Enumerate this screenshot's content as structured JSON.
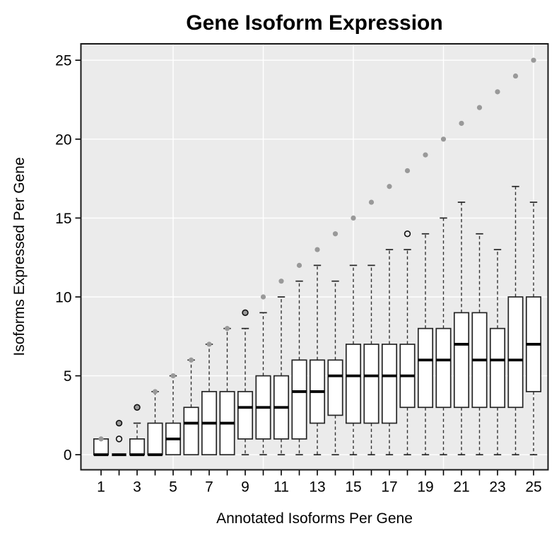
{
  "chart_data": {
    "type": "boxplot",
    "title": "Gene Isoform Expression",
    "xlabel": "Annotated Isoforms Per Gene",
    "ylabel": "Isoforms Expressed Per Gene",
    "xlim": [
      1,
      25
    ],
    "ylim": [
      0,
      25
    ],
    "y_ticks": [
      0,
      5,
      10,
      15,
      20,
      25
    ],
    "x_ticks": [
      1,
      2,
      3,
      4,
      5,
      6,
      7,
      8,
      9,
      10,
      11,
      12,
      13,
      14,
      15,
      16,
      17,
      18,
      19,
      20,
      21,
      22,
      23,
      24,
      25
    ],
    "x_tick_labels_shown": [
      1,
      3,
      5,
      7,
      9,
      11,
      13,
      15,
      17,
      19,
      21,
      23,
      25
    ],
    "x_gridlines": [
      5,
      10,
      15,
      20,
      25
    ],
    "grid": "white horizontal lines at y ticks and vertical lines at x=5,10,15,20,25 on gray panel",
    "legend": "none",
    "boxes": [
      {
        "x": 1,
        "q1": 0,
        "median": 0,
        "q3": 1,
        "whisker_low": 0,
        "whisker_high": 1,
        "outliers": []
      },
      {
        "x": 2,
        "q1": 0,
        "median": 0,
        "q3": 0,
        "whisker_low": 0,
        "whisker_high": 0,
        "outliers": [
          1,
          2
        ]
      },
      {
        "x": 3,
        "q1": 0,
        "median": 0,
        "q3": 1,
        "whisker_low": 0,
        "whisker_high": 2,
        "outliers": [
          3
        ]
      },
      {
        "x": 4,
        "q1": 0,
        "median": 0,
        "q3": 2,
        "whisker_low": 0,
        "whisker_high": 4,
        "outliers": []
      },
      {
        "x": 5,
        "q1": 0,
        "median": 1,
        "q3": 2,
        "whisker_low": 0,
        "whisker_high": 5,
        "outliers": []
      },
      {
        "x": 6,
        "q1": 0,
        "median": 2,
        "q3": 3,
        "whisker_low": 0,
        "whisker_high": 6,
        "outliers": []
      },
      {
        "x": 7,
        "q1": 0,
        "median": 2,
        "q3": 4,
        "whisker_low": 0,
        "whisker_high": 7,
        "outliers": []
      },
      {
        "x": 8,
        "q1": 0,
        "median": 2,
        "q3": 4,
        "whisker_low": 0,
        "whisker_high": 8,
        "outliers": []
      },
      {
        "x": 9,
        "q1": 1,
        "median": 3,
        "q3": 4,
        "whisker_low": 0,
        "whisker_high": 8,
        "outliers": [
          9
        ]
      },
      {
        "x": 10,
        "q1": 1,
        "median": 3,
        "q3": 5,
        "whisker_low": 0,
        "whisker_high": 9,
        "outliers": []
      },
      {
        "x": 11,
        "q1": 1,
        "median": 3,
        "q3": 5,
        "whisker_low": 0,
        "whisker_high": 10,
        "outliers": []
      },
      {
        "x": 12,
        "q1": 1,
        "median": 4,
        "q3": 6,
        "whisker_low": 0,
        "whisker_high": 11,
        "outliers": []
      },
      {
        "x": 13,
        "q1": 2,
        "median": 4,
        "q3": 6,
        "whisker_low": 0,
        "whisker_high": 12,
        "outliers": []
      },
      {
        "x": 14,
        "q1": 2.5,
        "median": 5,
        "q3": 6,
        "whisker_low": 0,
        "whisker_high": 11,
        "outliers": []
      },
      {
        "x": 15,
        "q1": 2,
        "median": 5,
        "q3": 7,
        "whisker_low": 0,
        "whisker_high": 12,
        "outliers": []
      },
      {
        "x": 16,
        "q1": 2,
        "median": 5,
        "q3": 7,
        "whisker_low": 0,
        "whisker_high": 12,
        "outliers": []
      },
      {
        "x": 17,
        "q1": 2,
        "median": 5,
        "q3": 7,
        "whisker_low": 0,
        "whisker_high": 13,
        "outliers": []
      },
      {
        "x": 18,
        "q1": 3,
        "median": 5,
        "q3": 7,
        "whisker_low": 0,
        "whisker_high": 13,
        "outliers": [
          14
        ]
      },
      {
        "x": 19,
        "q1": 3,
        "median": 6,
        "q3": 8,
        "whisker_low": 0,
        "whisker_high": 14,
        "outliers": []
      },
      {
        "x": 20,
        "q1": 3,
        "median": 6,
        "q3": 8,
        "whisker_low": 0,
        "whisker_high": 15,
        "outliers": []
      },
      {
        "x": 21,
        "q1": 3,
        "median": 7,
        "q3": 9,
        "whisker_low": 0,
        "whisker_high": 16,
        "outliers": []
      },
      {
        "x": 22,
        "q1": 3,
        "median": 6,
        "q3": 9,
        "whisker_low": 0,
        "whisker_high": 14,
        "outliers": []
      },
      {
        "x": 23,
        "q1": 3,
        "median": 6,
        "q3": 8,
        "whisker_low": 0,
        "whisker_high": 13,
        "outliers": []
      },
      {
        "x": 24,
        "q1": 3,
        "median": 6,
        "q3": 10,
        "whisker_low": 0,
        "whisker_high": 17,
        "outliers": []
      },
      {
        "x": 25,
        "q1": 4,
        "median": 7,
        "q3": 10,
        "whisker_low": 0,
        "whisker_high": 16,
        "outliers": []
      }
    ],
    "reference_points": {
      "description": "gray filled dots marking the y = x identity diagonal",
      "x": [
        1,
        2,
        3,
        4,
        5,
        6,
        7,
        8,
        9,
        10,
        11,
        12,
        13,
        14,
        15,
        16,
        17,
        18,
        19,
        20,
        21,
        22,
        23,
        24,
        25
      ],
      "y": [
        1,
        2,
        3,
        4,
        5,
        6,
        7,
        8,
        9,
        10,
        11,
        12,
        13,
        14,
        15,
        16,
        17,
        18,
        19,
        20,
        21,
        22,
        23,
        24,
        25
      ]
    },
    "colors": {
      "panel_background": "#EBEBEB",
      "gridline": "#FFFFFF",
      "box_fill": "#FFFFFF",
      "box_stroke": "#262626",
      "median": "#000000",
      "whisker": "#333333",
      "reference_dot": "#999999",
      "outlier_stroke": "#111111",
      "plot_border": "#1A1A1A",
      "text": "#000000"
    }
  }
}
